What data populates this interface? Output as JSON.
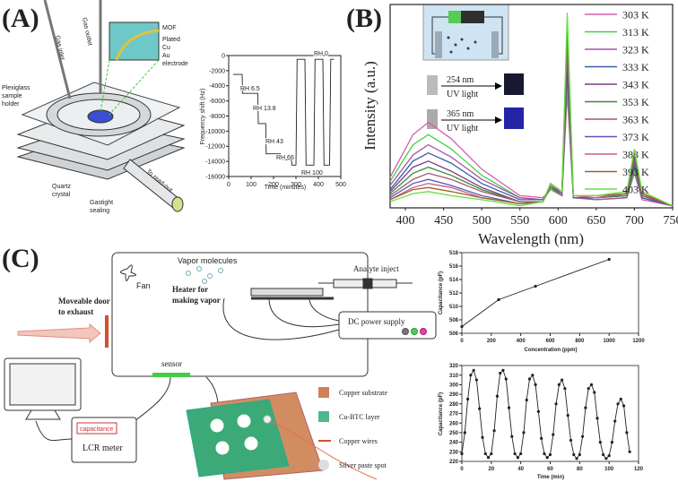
{
  "panels": {
    "a": "(A)",
    "b": "(B)",
    "c": "(C)"
  },
  "diagram_a": {
    "mof": "MOF",
    "plated": "Plated",
    "cu": "Cu",
    "au": "Au",
    "electrode": "electrode",
    "gas_outlet": "Gas outlet",
    "gas_inlet": "Gas inlet",
    "holder": [
      "Plexiglass",
      "sample",
      "holder"
    ],
    "quartz": [
      "Quartz",
      "crystal"
    ],
    "sealing": [
      "Gastight",
      "sealing"
    ],
    "readout": "To read-out"
  },
  "inset_b": {
    "uv1": [
      "254 nm",
      "UV light"
    ],
    "uv2": [
      "365 nm",
      "UV light"
    ]
  },
  "diagram_c": {
    "fan": "Fan",
    "vapor": "Vapor molecules",
    "inject": "Analyte inject",
    "heater": [
      "Heater for",
      "making vapor"
    ],
    "door": [
      "Moveable door",
      "to exhaust"
    ],
    "dc": "DC power supply",
    "sensor": "sensor",
    "capacitance": "capacitance",
    "lcr": "LCR meter",
    "legend": [
      "Copper substrate",
      "Cu-BTC layer",
      "Copper wires",
      "Silver paste spot"
    ]
  },
  "chart_data": [
    {
      "type": "line",
      "x_label": "Time (minutes)",
      "y_label": "Frequency shift (Hz)",
      "x": [
        20,
        60,
        62,
        130,
        132,
        165,
        167,
        230,
        232,
        280,
        282,
        300,
        305,
        340,
        345,
        380,
        385,
        420,
        425,
        450,
        455,
        470
      ],
      "series": [
        {
          "color": "#222222",
          "values": [
            -2500,
            -2500,
            -5000,
            -5000,
            -9000,
            -9000,
            -13000,
            -13000,
            -13800,
            -13800,
            -14500,
            -14500,
            -500,
            -500,
            -14500,
            -14500,
            -500,
            -500,
            -14500,
            -14500,
            -500,
            -500
          ]
        }
      ],
      "xlim": [
        0,
        500
      ],
      "xticks": [
        0,
        100,
        200,
        300,
        400,
        500
      ],
      "ylim": [
        -16000,
        0
      ],
      "yticks": [
        0,
        -2000,
        -4000,
        -6000,
        -8000,
        -10000,
        -12000,
        -14000,
        -16000
      ],
      "annotations": [
        "RH 6.5",
        "RH 13.8",
        "RH 43",
        "RH 66",
        "RH 100",
        "RH 0"
      ]
    },
    {
      "type": "line",
      "x_label": "Wavelength (nm)",
      "y_label": "Intensity (a.u.)",
      "x": [
        380,
        410,
        430,
        460,
        500,
        550,
        580,
        590,
        605,
        612,
        620,
        650,
        690,
        700,
        710,
        750
      ],
      "xlim": [
        380,
        750
      ],
      "xticks": [
        400,
        450,
        500,
        550,
        600,
        650,
        700,
        750
      ],
      "ylim": [
        0,
        1
      ],
      "series": [
        {
          "name": "303 K",
          "color": "#d45fae",
          "values": [
            0.15,
            0.36,
            0.42,
            0.34,
            0.19,
            0.06,
            0.05,
            0.09,
            0.06,
            0.56,
            0.05,
            0.04,
            0.05,
            0.17,
            0.04,
            0.01
          ]
        },
        {
          "name": "313 K",
          "color": "#45d145",
          "values": [
            0.13,
            0.31,
            0.36,
            0.29,
            0.16,
            0.05,
            0.04,
            0.09,
            0.06,
            0.61,
            0.05,
            0.04,
            0.05,
            0.18,
            0.05,
            0.01
          ]
        },
        {
          "name": "323 K",
          "color": "#a653a8",
          "values": [
            0.11,
            0.26,
            0.31,
            0.25,
            0.14,
            0.05,
            0.04,
            0.1,
            0.06,
            0.65,
            0.05,
            0.04,
            0.05,
            0.2,
            0.05,
            0.01
          ]
        },
        {
          "name": "333 K",
          "color": "#3b5ca6",
          "values": [
            0.09,
            0.23,
            0.27,
            0.22,
            0.12,
            0.04,
            0.04,
            0.1,
            0.07,
            0.69,
            0.05,
            0.05,
            0.06,
            0.21,
            0.05,
            0.01
          ]
        },
        {
          "name": "343 K",
          "color": "#7f3a86",
          "values": [
            0.08,
            0.2,
            0.23,
            0.18,
            0.1,
            0.03,
            0.03,
            0.1,
            0.07,
            0.73,
            0.05,
            0.05,
            0.06,
            0.22,
            0.06,
            0.01
          ]
        },
        {
          "name": "353 K",
          "color": "#3c8a3c",
          "values": [
            0.07,
            0.17,
            0.2,
            0.16,
            0.09,
            0.03,
            0.03,
            0.1,
            0.07,
            0.77,
            0.05,
            0.05,
            0.06,
            0.23,
            0.06,
            0.01
          ]
        },
        {
          "name": "363 K",
          "color": "#a0566c",
          "values": [
            0.06,
            0.14,
            0.17,
            0.14,
            0.08,
            0.03,
            0.03,
            0.11,
            0.07,
            0.81,
            0.05,
            0.05,
            0.07,
            0.24,
            0.06,
            0.01
          ]
        },
        {
          "name": "373 K",
          "color": "#5858b8",
          "values": [
            0.05,
            0.12,
            0.14,
            0.11,
            0.06,
            0.02,
            0.03,
            0.11,
            0.07,
            0.84,
            0.05,
            0.05,
            0.07,
            0.25,
            0.07,
            0.01
          ]
        },
        {
          "name": "383 K",
          "color": "#c65f86",
          "values": [
            0.04,
            0.1,
            0.12,
            0.1,
            0.05,
            0.02,
            0.03,
            0.11,
            0.08,
            0.88,
            0.06,
            0.05,
            0.07,
            0.27,
            0.07,
            0.01
          ]
        },
        {
          "name": "393 K",
          "color": "#a0602e",
          "values": [
            0.04,
            0.09,
            0.1,
            0.08,
            0.05,
            0.02,
            0.03,
            0.12,
            0.08,
            0.92,
            0.06,
            0.06,
            0.07,
            0.28,
            0.07,
            0.01
          ]
        },
        {
          "name": "403 K",
          "color": "#62e23e",
          "values": [
            0.03,
            0.07,
            0.08,
            0.06,
            0.04,
            0.01,
            0.03,
            0.12,
            0.08,
            0.96,
            0.06,
            0.06,
            0.08,
            0.29,
            0.08,
            0.01
          ]
        }
      ]
    },
    {
      "type": "line",
      "x_label": "Concentration (ppm)",
      "y_label": "Capacitance (pF)",
      "markers": true,
      "x": [
        0,
        250,
        500,
        1000
      ],
      "series": [
        {
          "color": "#222222",
          "values": [
            507,
            511,
            513,
            517
          ]
        }
      ],
      "xlim": [
        0,
        1200
      ],
      "xticks": [
        0,
        200,
        400,
        600,
        800,
        1000,
        1200
      ],
      "ylim": [
        506,
        518
      ],
      "yticks": [
        506,
        508,
        510,
        512,
        514,
        516,
        518
      ]
    },
    {
      "type": "line",
      "x_label": "Time (min)",
      "y_label": "Capacitance (pF)",
      "markers": true,
      "x": [
        0,
        2,
        4,
        6,
        8,
        10,
        12,
        14,
        16,
        18,
        20,
        22,
        24,
        26,
        28,
        30,
        32,
        34,
        36,
        38,
        40,
        42,
        44,
        46,
        48,
        50,
        52,
        54,
        56,
        58,
        60,
        62,
        64,
        66,
        68,
        70,
        72,
        74,
        76,
        78,
        80,
        82,
        84,
        86,
        88,
        90,
        92,
        94,
        96,
        98,
        100,
        102,
        104,
        106,
        108,
        110,
        112,
        114
      ],
      "series": [
        {
          "color": "#222222",
          "values": [
            228,
            250,
            285,
            310,
            315,
            305,
            275,
            245,
            228,
            224,
            228,
            252,
            288,
            312,
            315,
            306,
            276,
            246,
            228,
            224,
            228,
            250,
            284,
            306,
            310,
            300,
            272,
            244,
            228,
            224,
            227,
            248,
            280,
            300,
            305,
            296,
            268,
            242,
            227,
            223,
            227,
            246,
            276,
            296,
            300,
            292,
            265,
            240,
            227,
            223,
            226,
            240,
            262,
            280,
            285,
            278,
            250,
            230
          ]
        }
      ],
      "xlim": [
        0,
        120
      ],
      "xticks": [
        0,
        20,
        40,
        60,
        80,
        100,
        120
      ],
      "ylim": [
        220,
        320
      ],
      "yticks": [
        220,
        230,
        240,
        250,
        260,
        270,
        280,
        290,
        300,
        310,
        320
      ]
    }
  ]
}
